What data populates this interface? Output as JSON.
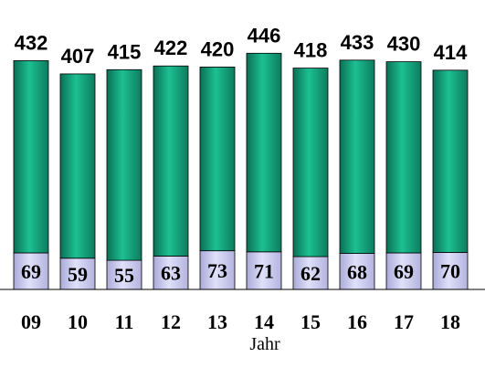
{
  "chart_data": {
    "type": "bar",
    "stacked": true,
    "categories": [
      "09",
      "10",
      "11",
      "12",
      "13",
      "14",
      "15",
      "16",
      "17",
      "18"
    ],
    "totals": [
      432,
      407,
      415,
      422,
      420,
      446,
      418,
      433,
      430,
      414
    ],
    "series": [
      {
        "values": [
          69,
          59,
          55,
          63,
          73,
          71,
          62,
          68,
          69,
          70
        ],
        "color": "#c8c8f0"
      },
      {
        "values": [
          363,
          348,
          360,
          359,
          347,
          375,
          356,
          365,
          361,
          344
        ],
        "color": "#14a07a"
      }
    ],
    "xlabel": "Jahr",
    "ylabel": "",
    "title": "",
    "grid": false,
    "legend": "none"
  }
}
